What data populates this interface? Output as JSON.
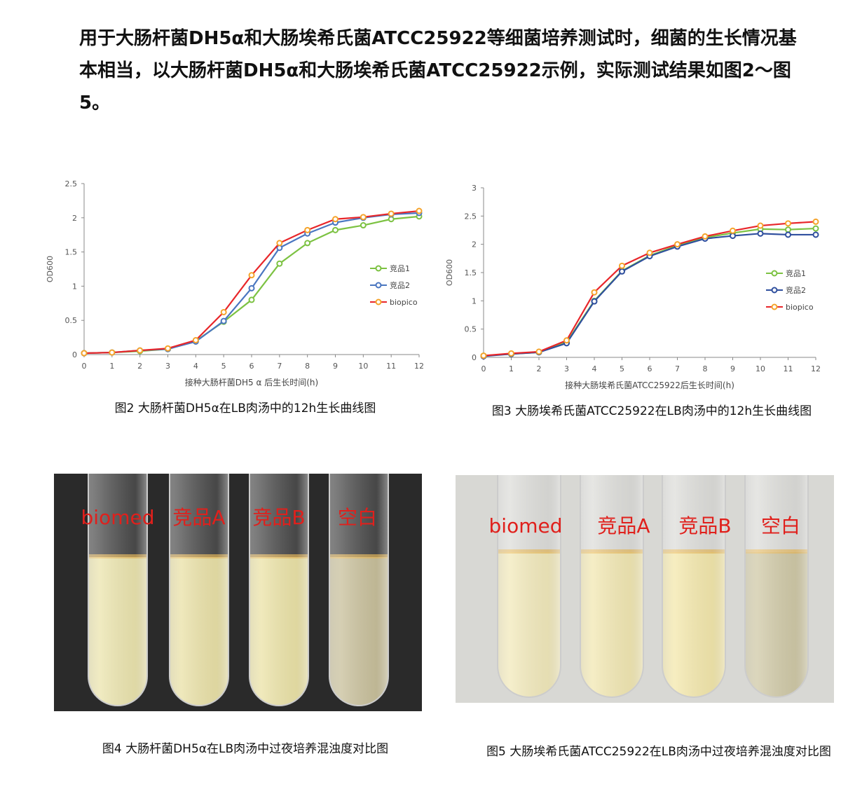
{
  "paragraph": "用于大肠杆菌DH5α和大肠埃希氏菌ATCC25922等细菌培养测试时，细菌的生长情况基本相当，以大肠杆菌DH5α和大肠埃希氏菌ATCC25922示例，实际测试结果如图2～图5。",
  "figures": [
    {
      "chart": {
        "type": "line",
        "y_label": "OD600",
        "x_label": "接种大肠杆菌DH5 α 后生长时间(h)",
        "x": [
          0,
          1,
          2,
          3,
          4,
          5,
          6,
          7,
          8,
          9,
          10,
          11,
          12
        ],
        "xlim": [
          0,
          12
        ],
        "xticks": [
          0,
          1,
          2,
          3,
          4,
          5,
          6,
          7,
          8,
          9,
          10,
          11,
          12
        ],
        "ylim": [
          0,
          2.5
        ],
        "yticks": [
          0,
          0.5,
          1,
          1.5,
          2,
          2.5
        ],
        "series": [
          {
            "name": "竞品1",
            "color": "#7cc242",
            "marker_color": "#7cc242",
            "values": [
              0.02,
              0.03,
              0.05,
              0.08,
              0.2,
              0.48,
              0.8,
              1.33,
              1.63,
              1.82,
              1.89,
              1.98,
              2.02
            ]
          },
          {
            "name": "竞品2",
            "color": "#4a76c0",
            "marker_color": "#4a76c0",
            "values": [
              0.02,
              0.03,
              0.06,
              0.08,
              0.19,
              0.49,
              0.97,
              1.56,
              1.77,
              1.93,
              2.0,
              2.05,
              2.07
            ]
          },
          {
            "name": "biopico",
            "color": "#e8262a",
            "marker_color": "#f5a32a",
            "values": [
              0.02,
              0.03,
              0.06,
              0.09,
              0.21,
              0.62,
              1.16,
              1.63,
              1.82,
              1.98,
              2.01,
              2.06,
              2.1
            ]
          }
        ]
      },
      "caption": "图2 大肠杆菌DH5α在LB肉汤中的12h生长曲线图"
    },
    {
      "chart": {
        "type": "line",
        "y_label": "OD600",
        "x_label": "接种大肠埃希氏菌ATCC25922后生长时间(h)",
        "x": [
          0,
          1,
          2,
          3,
          4,
          5,
          6,
          7,
          8,
          9,
          10,
          11,
          12
        ],
        "xlim": [
          0,
          12
        ],
        "xticks": [
          0,
          1,
          2,
          3,
          4,
          5,
          6,
          7,
          8,
          9,
          10,
          11,
          12
        ],
        "ylim": [
          0,
          3
        ],
        "yticks": [
          0,
          0.5,
          1,
          1.5,
          2,
          2.5,
          3
        ],
        "series": [
          {
            "name": "竞品1",
            "color": "#7cc242",
            "marker_color": "#7cc242",
            "values": [
              0.03,
              0.06,
              0.09,
              0.27,
              1.0,
              1.53,
              1.8,
              1.98,
              2.12,
              2.2,
              2.27,
              2.26,
              2.28
            ]
          },
          {
            "name": "竞品2",
            "color": "#2f4f9e",
            "marker_color": "#2f4f9e",
            "values": [
              0.02,
              0.06,
              0.09,
              0.25,
              0.99,
              1.52,
              1.79,
              1.96,
              2.1,
              2.15,
              2.19,
              2.17,
              2.17
            ]
          },
          {
            "name": "biopico",
            "color": "#e8262a",
            "marker_color": "#f5a32a",
            "values": [
              0.03,
              0.07,
              0.1,
              0.3,
              1.15,
              1.62,
              1.85,
              2.0,
              2.14,
              2.24,
              2.33,
              2.37,
              2.4
            ]
          }
        ]
      },
      "caption": "图3 大肠埃希氏菌ATCC25922在LB肉汤中的12h生长曲线图"
    }
  ],
  "photos": [
    {
      "labels": [
        "biomed",
        "竞品A",
        "竞品B",
        "空白"
      ],
      "caption": "图4 大肠杆菌DH5α在LB肉汤中过夜培养混浊度对比图"
    },
    {
      "labels": [
        "biomed",
        "竞品A",
        "竞品B",
        "空白"
      ],
      "caption": "图5 大肠埃希氏菌ATCC25922在LB肉汤中过夜培养混浊度对比图"
    }
  ]
}
